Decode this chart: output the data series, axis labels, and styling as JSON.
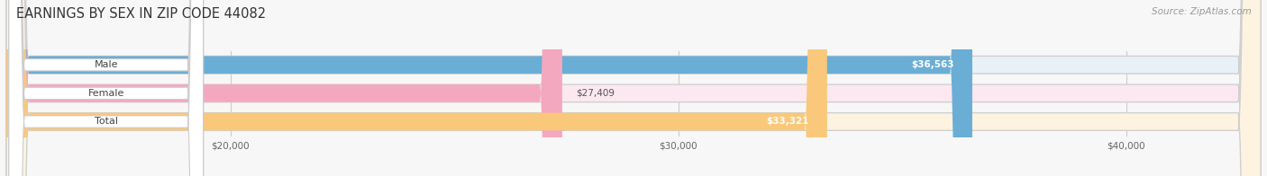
{
  "title": "EARNINGS BY SEX IN ZIP CODE 44082",
  "source_text": "Source: ZipAtlas.com",
  "categories": [
    "Male",
    "Female",
    "Total"
  ],
  "values": [
    36563,
    27409,
    33321
  ],
  "bar_colors": [
    "#6aaed6",
    "#f4a8c0",
    "#f9c87a"
  ],
  "bg_colors": [
    "#e8f0f8",
    "#fce8f0",
    "#fef3e0"
  ],
  "value_labels": [
    "$36,563",
    "$27,409",
    "$33,321"
  ],
  "x_min": 15000,
  "x_max": 43000,
  "x_ticks": [
    20000,
    30000,
    40000
  ],
  "x_tick_labels": [
    "$20,000",
    "$30,000",
    "$40,000"
  ],
  "title_fontsize": 10.5,
  "bar_height": 0.62,
  "background_color": "#f7f7f7",
  "bar_bg_color": "#e8e8e8",
  "pill_color": "white",
  "pill_edge_color": "#cccccc"
}
